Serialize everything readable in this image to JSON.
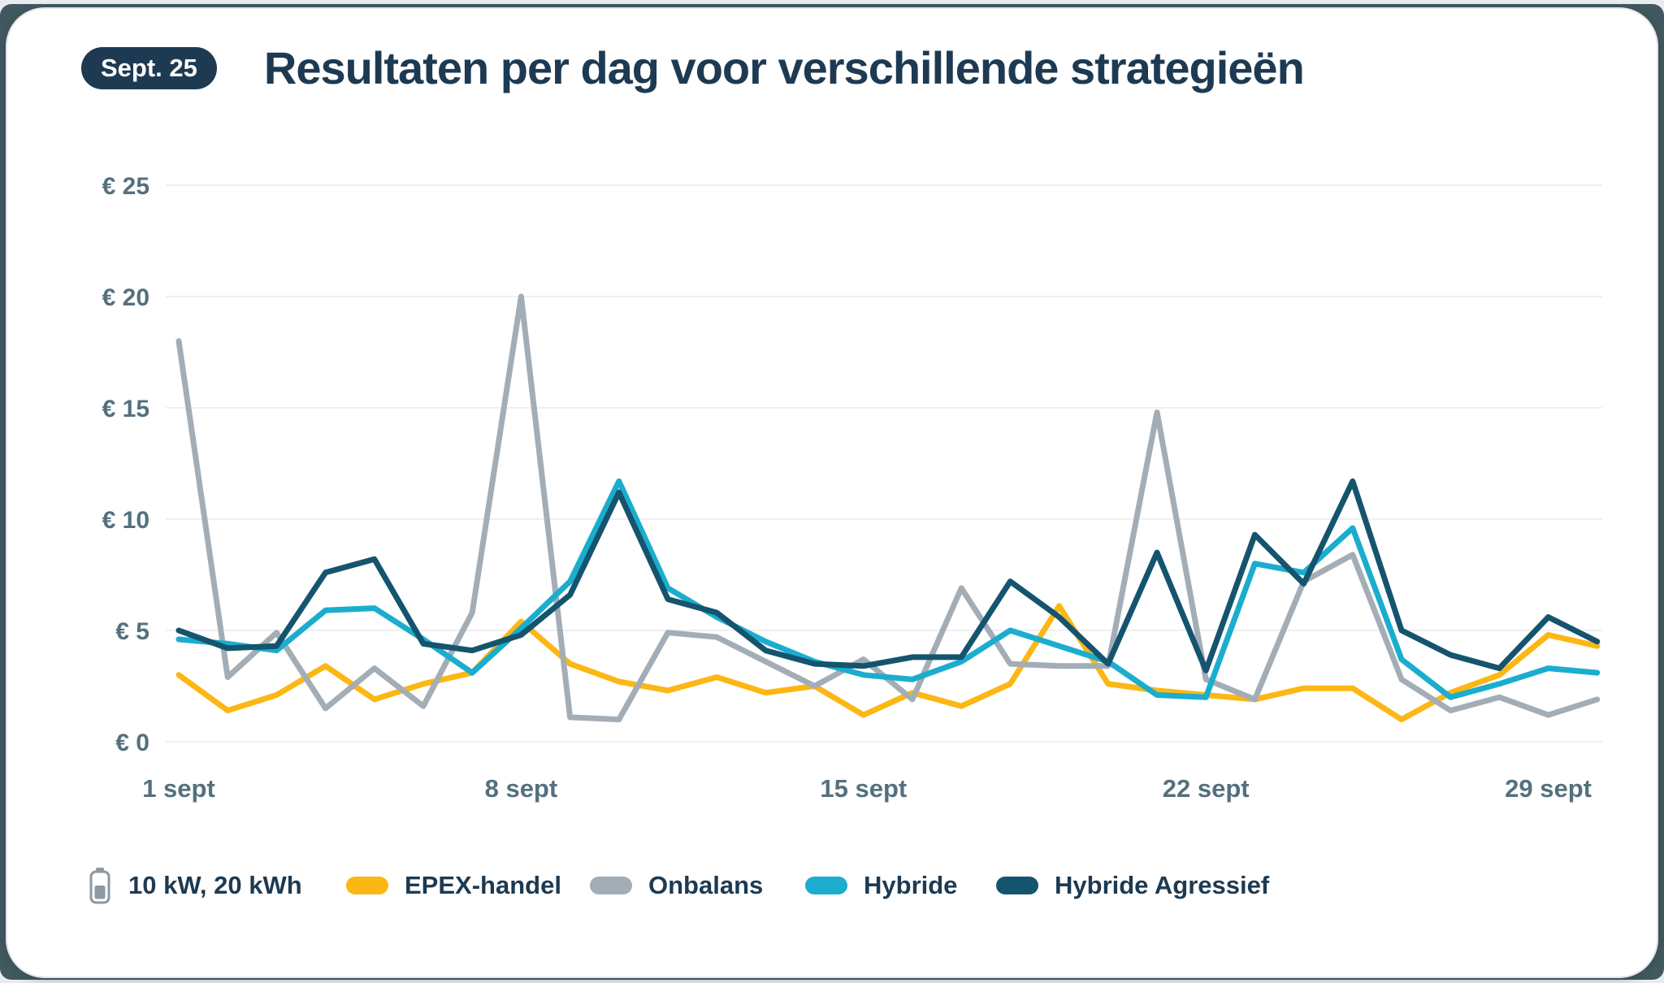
{
  "badge": "Sept. 25",
  "title": "Resultaten per dag voor verschillende strategieën",
  "battery": {
    "icon": "battery-icon",
    "label": "10 kW, 20 kWh"
  },
  "colors": {
    "navy_text": "#1d3a52",
    "axis_label": "#54707e",
    "gridline": "#eef0f2",
    "card_bg": "#ffffff",
    "page_bg": "#41585f",
    "epex": "#fcb714",
    "onbalans": "#a3adb6",
    "hybride": "#1badce",
    "hybride_agressief": "#15546e"
  },
  "chart_data": {
    "type": "line",
    "title": "Resultaten per dag voor verschillende strategieën",
    "xlabel": "",
    "ylabel": "€",
    "ylim": [
      0,
      25
    ],
    "grid": "horizontal-only",
    "legend_position": "bottom",
    "x": [
      1,
      2,
      3,
      4,
      5,
      6,
      7,
      8,
      9,
      10,
      11,
      12,
      13,
      14,
      15,
      16,
      17,
      18,
      19,
      20,
      21,
      22,
      23,
      24,
      25,
      26,
      27,
      28,
      29,
      30
    ],
    "x_ticks": [
      {
        "day": 1,
        "label": "1 sept"
      },
      {
        "day": 8,
        "label": "8 sept"
      },
      {
        "day": 15,
        "label": "15 sept"
      },
      {
        "day": 22,
        "label": "22 sept"
      },
      {
        "day": 29,
        "label": "29 sept"
      }
    ],
    "y_ticks": [
      {
        "value": 0,
        "label": "€ 0"
      },
      {
        "value": 5,
        "label": "€ 5"
      },
      {
        "value": 10,
        "label": "€ 10"
      },
      {
        "value": 15,
        "label": "€ 15"
      },
      {
        "value": 20,
        "label": "€ 20"
      },
      {
        "value": 25,
        "label": "€ 25"
      }
    ],
    "series": [
      {
        "name": "EPEX-handel",
        "color": "#fcb714",
        "values": [
          3.0,
          1.4,
          2.1,
          3.4,
          1.9,
          2.6,
          3.1,
          5.4,
          3.5,
          2.7,
          2.3,
          2.9,
          2.2,
          2.5,
          1.2,
          2.2,
          1.6,
          2.6,
          6.1,
          2.6,
          2.3,
          2.1,
          1.9,
          2.4,
          2.4,
          1.0,
          2.2,
          3.0,
          4.8,
          4.3
        ]
      },
      {
        "name": "Onbalans",
        "color": "#a3adb6",
        "values": [
          18.0,
          2.9,
          4.9,
          1.5,
          3.3,
          1.6,
          5.8,
          20.0,
          1.1,
          1.0,
          4.9,
          4.7,
          3.6,
          2.5,
          3.7,
          1.9,
          6.9,
          3.5,
          3.4,
          3.4,
          14.8,
          2.8,
          1.9,
          7.2,
          8.4,
          2.8,
          1.4,
          2.0,
          1.2,
          1.9
        ]
      },
      {
        "name": "Hybride",
        "color": "#1badce",
        "values": [
          4.6,
          4.4,
          4.1,
          5.9,
          6.0,
          4.6,
          3.1,
          5.1,
          7.2,
          11.7,
          6.9,
          5.6,
          4.5,
          3.6,
          3.0,
          2.8,
          3.6,
          5.0,
          4.3,
          3.6,
          2.1,
          2.0,
          8.0,
          7.6,
          9.6,
          3.7,
          2.0,
          2.6,
          3.3,
          3.1
        ]
      },
      {
        "name": "Hybride Agressief",
        "color": "#15546e",
        "values": [
          5.0,
          4.2,
          4.3,
          7.6,
          8.2,
          4.4,
          4.1,
          4.8,
          6.6,
          11.2,
          6.4,
          5.8,
          4.1,
          3.5,
          3.4,
          3.8,
          3.8,
          7.2,
          5.6,
          3.5,
          8.5,
          3.2,
          9.3,
          7.1,
          11.7,
          5.0,
          3.9,
          3.3,
          5.6,
          4.5
        ]
      }
    ]
  },
  "legend": {
    "battery_label": "10 kW, 20 kWh",
    "items": [
      "EPEX-handel",
      "Onbalans",
      "Hybride",
      "Hybride Agressief"
    ]
  }
}
